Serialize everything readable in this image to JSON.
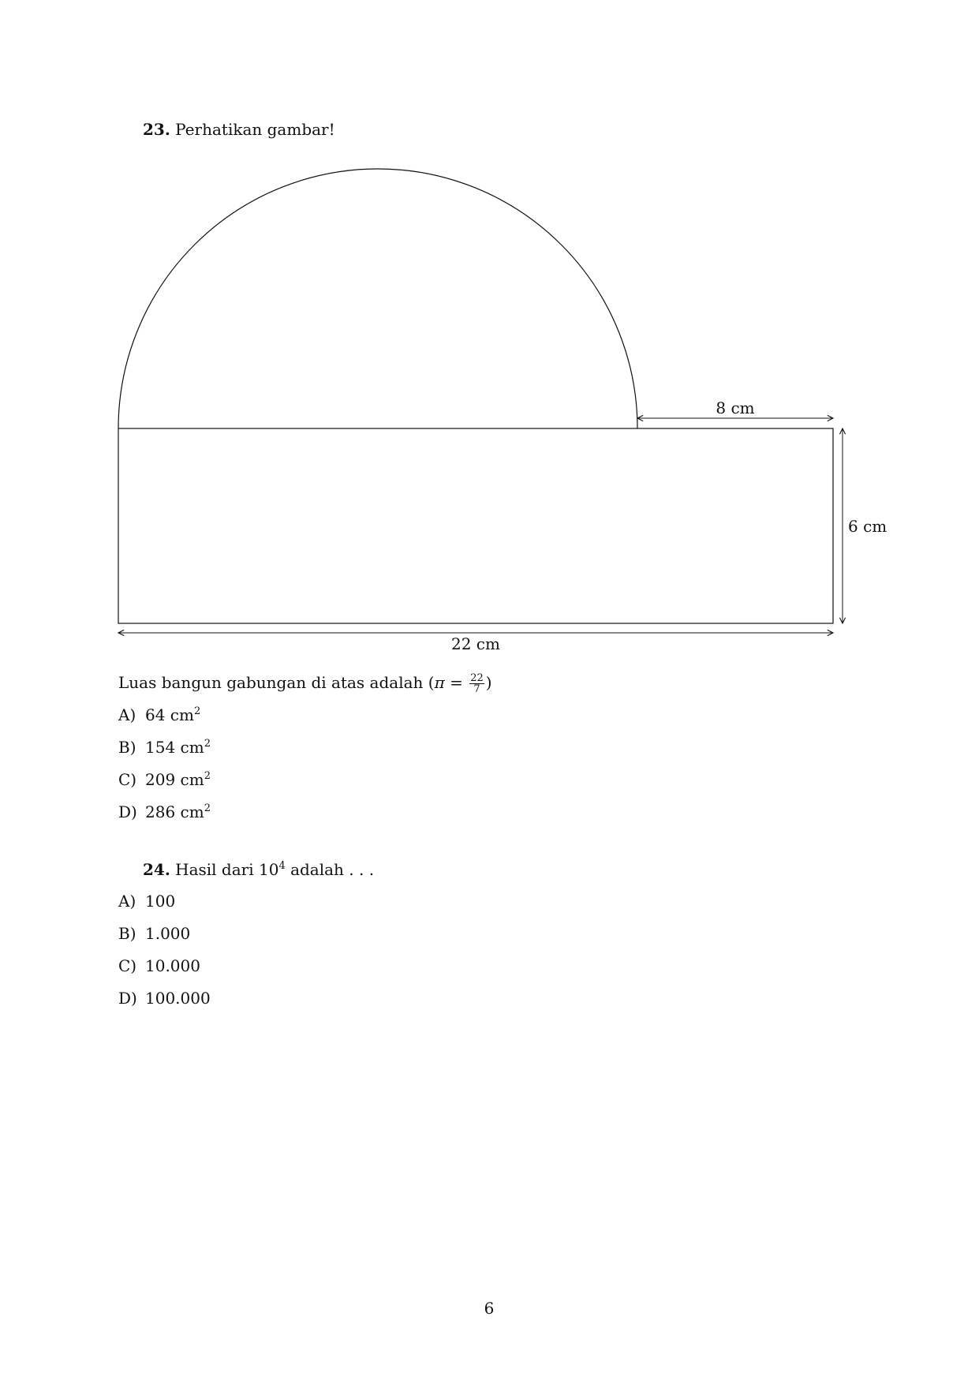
{
  "q23": {
    "number": "23.",
    "prompt": "Perhatikan gambar!",
    "figure": {
      "label_top": "8 cm",
      "label_right": "6 cm",
      "label_bottom": "22 cm"
    },
    "question_text": "Luas bangun gabungan di atas adalah (",
    "pi_symbol": "π",
    "equals": "=",
    "frac_num": "22",
    "frac_den": "7",
    "close_paren": ")",
    "options": [
      {
        "letter": "A)",
        "value": "64 cm",
        "sup": "2"
      },
      {
        "letter": "B)",
        "value": "154 cm",
        "sup": "2"
      },
      {
        "letter": "C)",
        "value": "209 cm",
        "sup": "2"
      },
      {
        "letter": "D)",
        "value": "286 cm",
        "sup": "2"
      }
    ]
  },
  "q24": {
    "number": "24.",
    "text_before": "Hasil dari 10",
    "exponent": "4",
    "text_after": " adalah . . .",
    "options": [
      {
        "letter": "A)",
        "value": "100"
      },
      {
        "letter": "B)",
        "value": "1.000"
      },
      {
        "letter": "C)",
        "value": "10.000"
      },
      {
        "letter": "D)",
        "value": "100.000"
      }
    ]
  },
  "page_number": "6"
}
